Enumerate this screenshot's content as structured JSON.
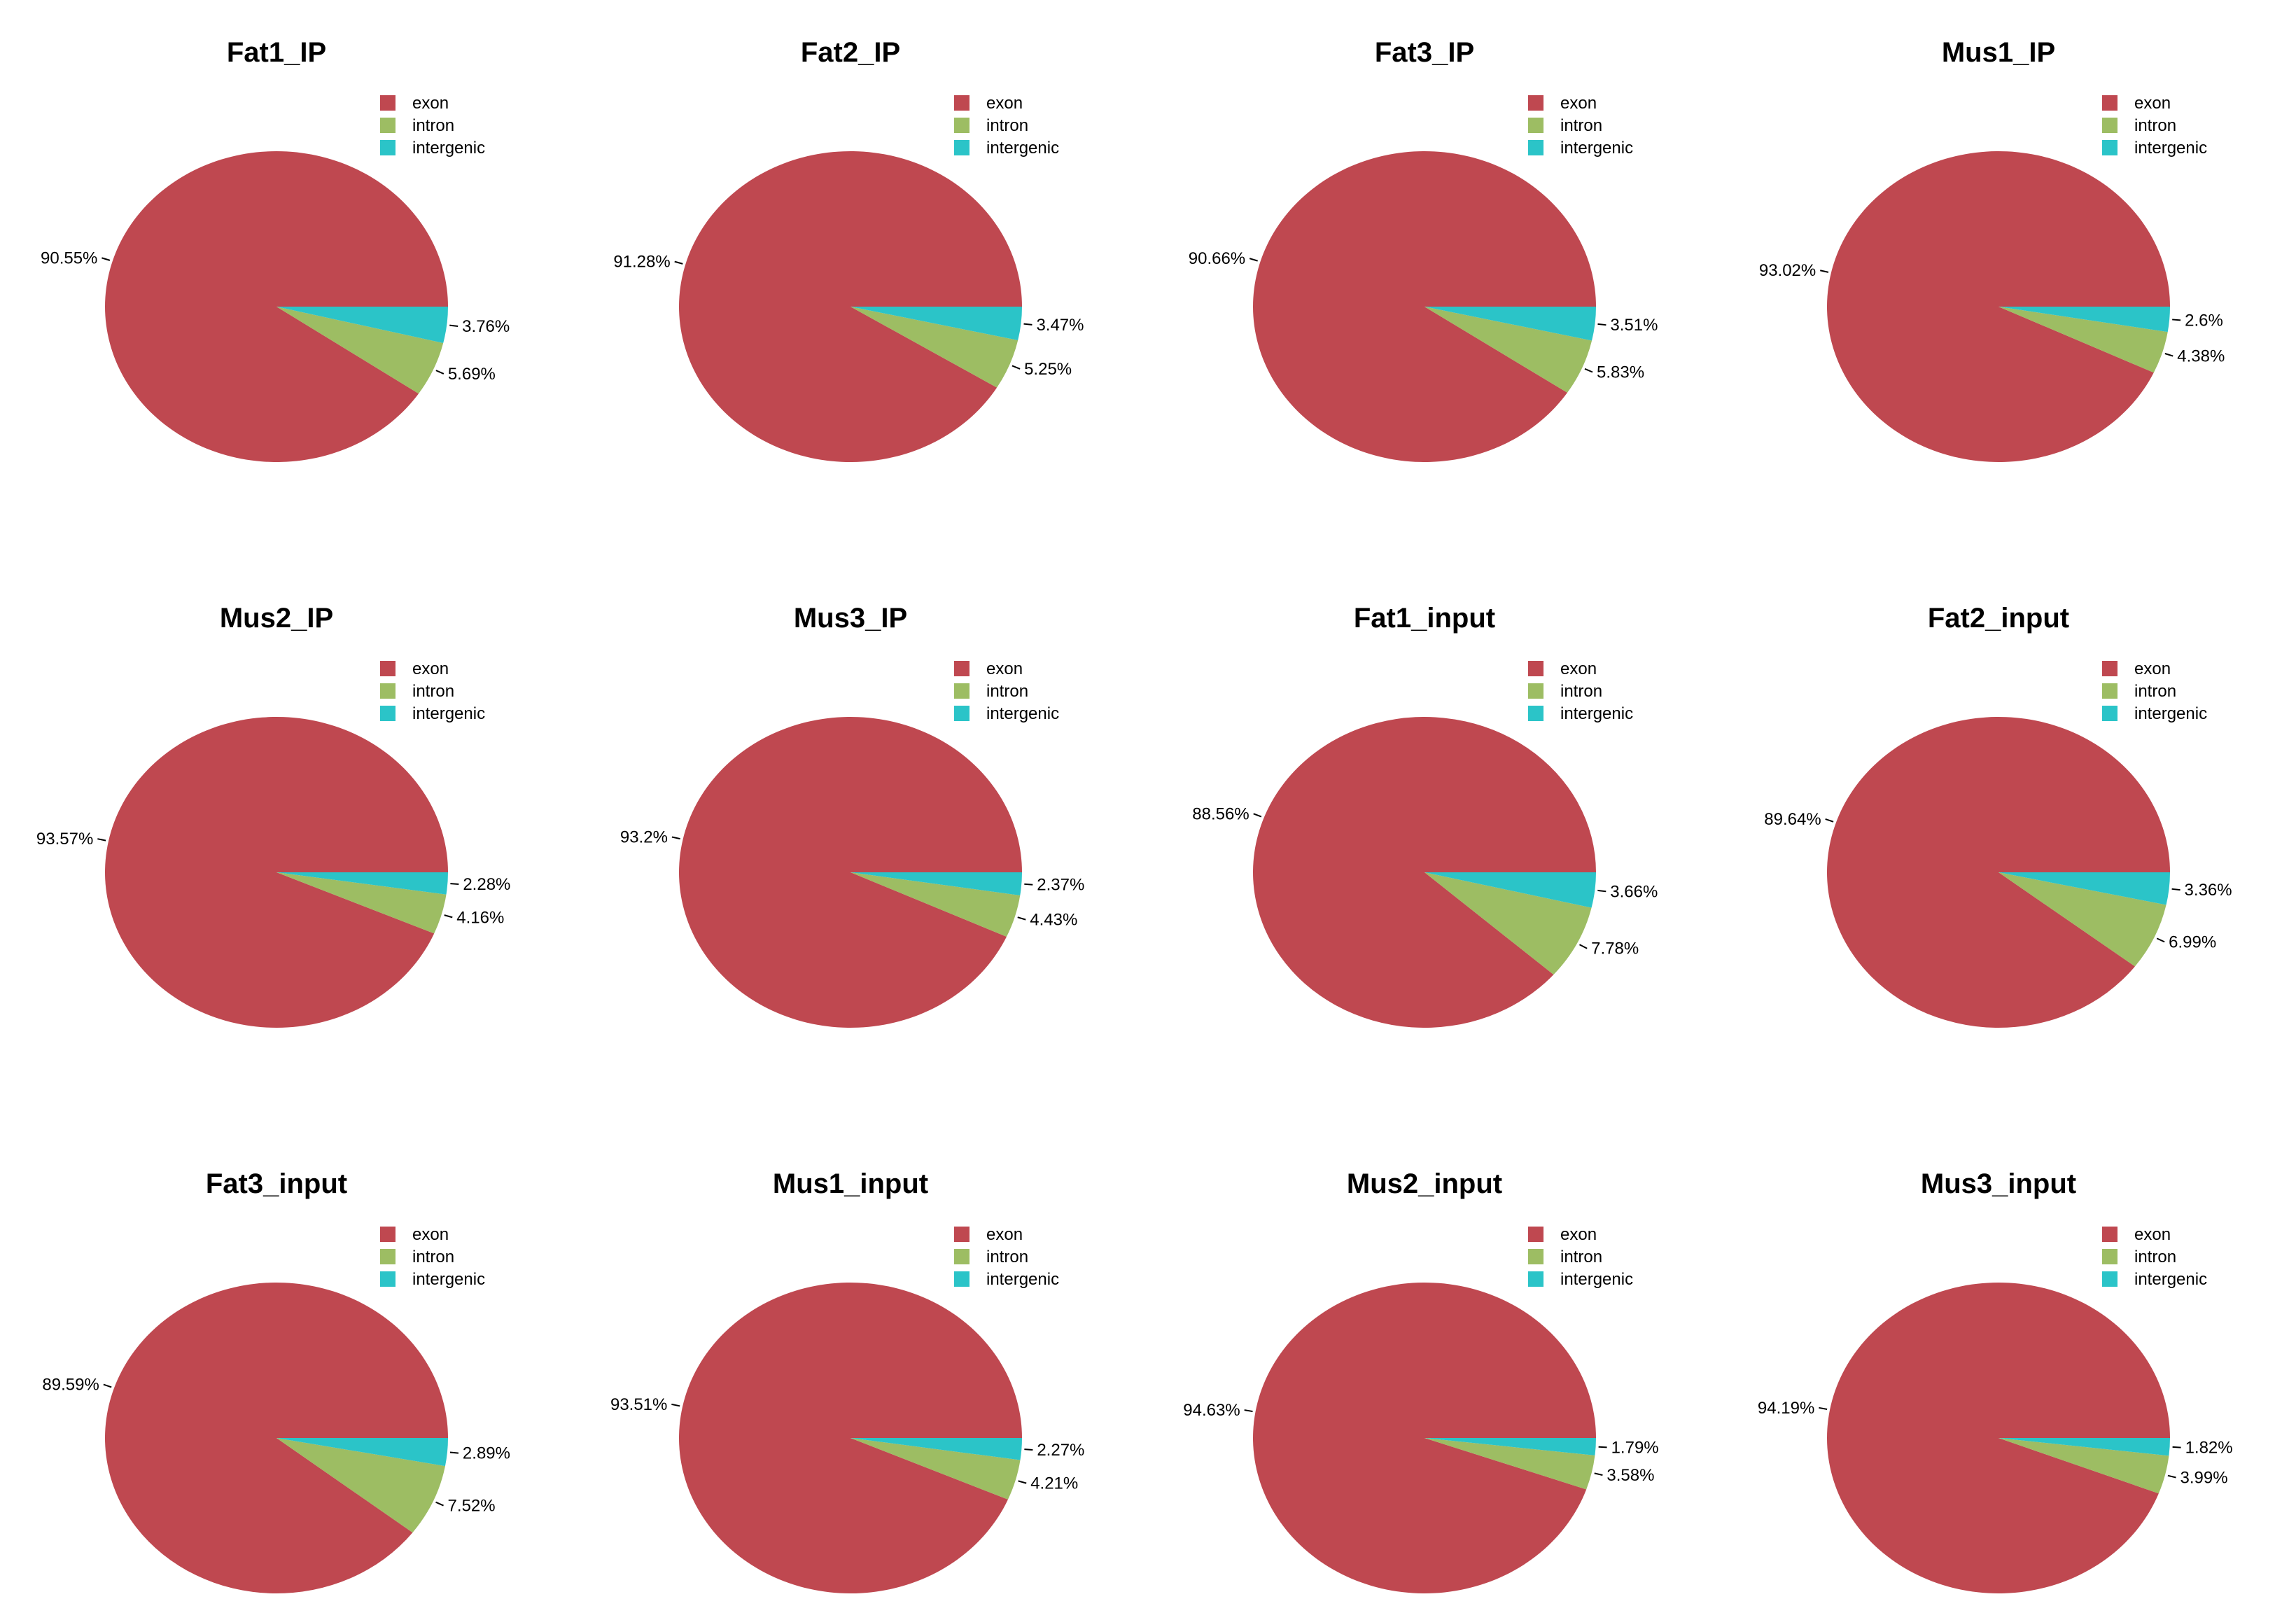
{
  "figure_title": "",
  "chart_data": [
    {
      "type": "pie",
      "title": "Fat1_IP",
      "categories": [
        "exon",
        "intron",
        "intergenic"
      ],
      "values": [
        90.55,
        5.69,
        3.76
      ],
      "labels": [
        "90.55%",
        "5.69%",
        "3.76%"
      ],
      "colors": [
        "#bf4850",
        "#9dbd63",
        "#2bc4c8"
      ],
      "legend_position": "top-right"
    },
    {
      "type": "pie",
      "title": "Fat2_IP",
      "categories": [
        "exon",
        "intron",
        "intergenic"
      ],
      "values": [
        91.28,
        5.25,
        3.47
      ],
      "labels": [
        "91.28%",
        "5.25%",
        "3.47%"
      ],
      "colors": [
        "#bf4850",
        "#9dbd63",
        "#2bc4c8"
      ],
      "legend_position": "top-right"
    },
    {
      "type": "pie",
      "title": "Fat3_IP",
      "categories": [
        "exon",
        "intron",
        "intergenic"
      ],
      "values": [
        90.66,
        5.83,
        3.51
      ],
      "labels": [
        "90.66%",
        "5.83%",
        "3.51%"
      ],
      "colors": [
        "#bf4850",
        "#9dbd63",
        "#2bc4c8"
      ],
      "legend_position": "top-right"
    },
    {
      "type": "pie",
      "title": "Mus1_IP",
      "categories": [
        "exon",
        "intron",
        "intergenic"
      ],
      "values": [
        93.02,
        4.38,
        2.6
      ],
      "labels": [
        "93.02%",
        "4.38%",
        "2.6%"
      ],
      "colors": [
        "#bf4850",
        "#9dbd63",
        "#2bc4c8"
      ],
      "legend_position": "top-right"
    },
    {
      "type": "pie",
      "title": "Mus2_IP",
      "categories": [
        "exon",
        "intron",
        "intergenic"
      ],
      "values": [
        93.57,
        4.16,
        2.28
      ],
      "labels": [
        "93.57%",
        "4.16%",
        "2.28%"
      ],
      "colors": [
        "#bf4850",
        "#9dbd63",
        "#2bc4c8"
      ],
      "legend_position": "top-right"
    },
    {
      "type": "pie",
      "title": "Mus3_IP",
      "categories": [
        "exon",
        "intron",
        "intergenic"
      ],
      "values": [
        93.2,
        4.43,
        2.37
      ],
      "labels": [
        "93.2%",
        "4.43%",
        "2.37%"
      ],
      "colors": [
        "#bf4850",
        "#9dbd63",
        "#2bc4c8"
      ],
      "legend_position": "top-right"
    },
    {
      "type": "pie",
      "title": "Fat1_input",
      "categories": [
        "exon",
        "intron",
        "intergenic"
      ],
      "values": [
        88.56,
        7.78,
        3.66
      ],
      "labels": [
        "88.56%",
        "7.78%",
        "3.66%"
      ],
      "colors": [
        "#bf4850",
        "#9dbd63",
        "#2bc4c8"
      ],
      "legend_position": "top-right"
    },
    {
      "type": "pie",
      "title": "Fat2_input",
      "categories": [
        "exon",
        "intron",
        "intergenic"
      ],
      "values": [
        89.64,
        6.99,
        3.36
      ],
      "labels": [
        "89.64%",
        "6.99%",
        "3.36%"
      ],
      "colors": [
        "#bf4850",
        "#9dbd63",
        "#2bc4c8"
      ],
      "legend_position": "top-right"
    },
    {
      "type": "pie",
      "title": "Fat3_input",
      "categories": [
        "exon",
        "intron",
        "intergenic"
      ],
      "values": [
        89.59,
        7.52,
        2.89
      ],
      "labels": [
        "89.59%",
        "7.52%",
        "2.89%"
      ],
      "colors": [
        "#bf4850",
        "#9dbd63",
        "#2bc4c8"
      ],
      "legend_position": "top-right"
    },
    {
      "type": "pie",
      "title": "Mus1_input",
      "categories": [
        "exon",
        "intron",
        "intergenic"
      ],
      "values": [
        93.51,
        4.21,
        2.27
      ],
      "labels": [
        "93.51%",
        "4.21%",
        "2.27%"
      ],
      "colors": [
        "#bf4850",
        "#9dbd63",
        "#2bc4c8"
      ],
      "legend_position": "top-right"
    },
    {
      "type": "pie",
      "title": "Mus2_input",
      "categories": [
        "exon",
        "intron",
        "intergenic"
      ],
      "values": [
        94.63,
        3.58,
        1.79
      ],
      "labels": [
        "94.63%",
        "3.58%",
        "1.79%"
      ],
      "colors": [
        "#bf4850",
        "#9dbd63",
        "#2bc4c8"
      ],
      "legend_position": "top-right"
    },
    {
      "type": "pie",
      "title": "Mus3_input",
      "categories": [
        "exon",
        "intron",
        "intergenic"
      ],
      "values": [
        94.19,
        3.99,
        1.82
      ],
      "labels": [
        "94.19%",
        "3.99%",
        "1.82%"
      ],
      "colors": [
        "#bf4850",
        "#9dbd63",
        "#2bc4c8"
      ],
      "legend_position": "top-right"
    }
  ]
}
